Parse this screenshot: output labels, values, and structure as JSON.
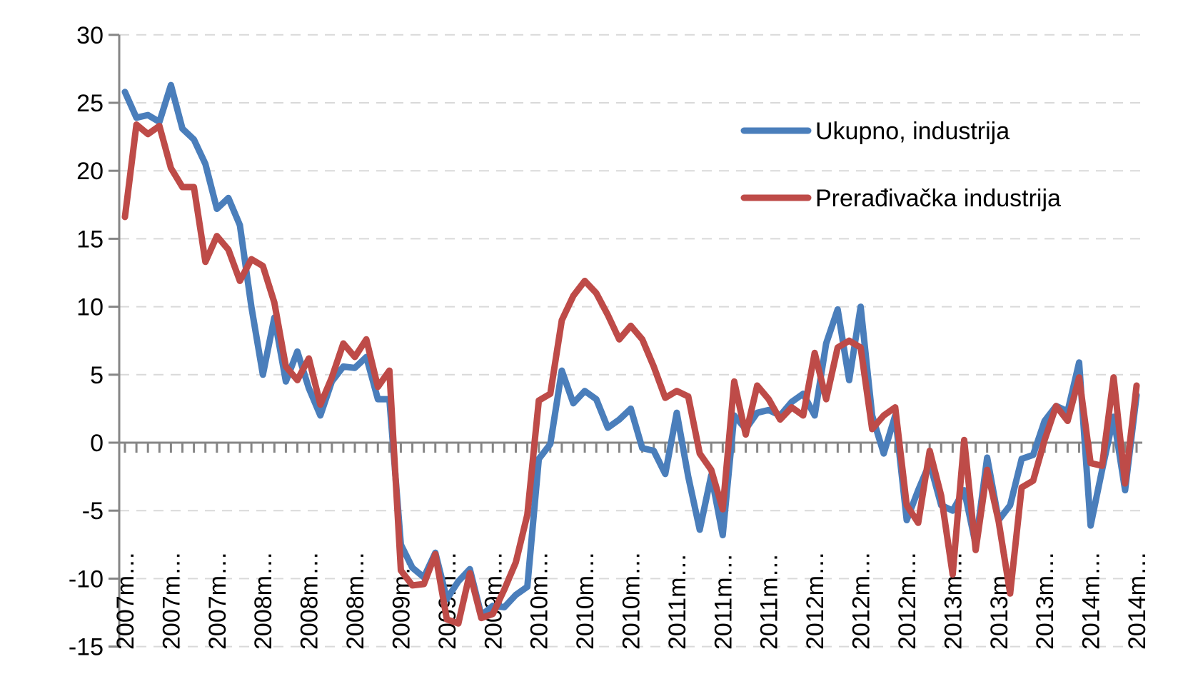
{
  "chart_data": {
    "type": "line",
    "title": "",
    "xlabel": "",
    "ylabel": "",
    "ylim": [
      -15,
      30
    ],
    "yticks": [
      30,
      25,
      20,
      15,
      10,
      5,
      0,
      -5,
      -10,
      -15
    ],
    "grid": true,
    "legend_position": "top-right",
    "x_tick_labels": [
      "2007m…",
      "2007m…",
      "2007m…",
      "2008m…",
      "2008m…",
      "2008m…",
      "2009m…",
      "2009m…",
      "2009m…",
      "2010m…",
      "2010m…",
      "2010m…",
      "2011m…",
      "2011m…",
      "2011m…",
      "2012m…",
      "2012m…",
      "2012m…",
      "2013m…",
      "2013m…",
      "2013m…",
      "2014m…",
      "2014m…"
    ],
    "x_label_every": 4,
    "series": [
      {
        "name": "Ukupno, industrija",
        "color": "#4a7ebb",
        "values": [
          25.8,
          23.9,
          24.1,
          23.6,
          26.3,
          23.1,
          22.3,
          20.5,
          17.2,
          18.0,
          16.0,
          10.0,
          5.0,
          9.2,
          4.5,
          6.7,
          4.0,
          2.0,
          4.5,
          5.6,
          5.5,
          6.3,
          3.2,
          3.2,
          -7.5,
          -9.2,
          -9.9,
          -8.1,
          -11.5,
          -10.2,
          -9.3,
          -12.7,
          -12.0,
          -12.1,
          -11.2,
          -10.6,
          -1.2,
          -0.1,
          5.3,
          2.9,
          3.8,
          3.2,
          1.1,
          1.7,
          2.5,
          -0.4,
          -0.6,
          -2.3,
          2.2,
          -2.5,
          -6.4,
          -2.4,
          -6.8,
          2.0,
          1.0,
          2.2,
          2.4,
          2.0,
          3.0,
          3.6,
          2.0,
          7.3,
          9.8,
          4.6,
          10.0,
          2.0,
          -0.8,
          2.0,
          -5.7,
          -3.5,
          -1.5,
          -4.6,
          -5.0,
          -3.5,
          -7.5,
          -1.1,
          -5.7,
          -4.6,
          -1.2,
          -0.9,
          1.6,
          2.7,
          2.3,
          5.9,
          -6.1,
          -2.0,
          1.9,
          -3.5,
          3.5
        ]
      },
      {
        "name": "Prerađivačka industrija",
        "color": "#be4b48",
        "values": [
          16.6,
          23.4,
          22.7,
          23.3,
          20.2,
          18.8,
          18.8,
          13.3,
          15.2,
          14.2,
          11.9,
          13.5,
          13.0,
          10.3,
          5.6,
          4.6,
          6.2,
          2.8,
          4.8,
          7.3,
          6.3,
          7.6,
          4.1,
          5.3,
          -9.4,
          -10.5,
          -10.4,
          -8.2,
          -13.0,
          -13.3,
          -9.6,
          -12.9,
          -12.6,
          -10.8,
          -8.8,
          -5.3,
          3.1,
          3.6,
          9.0,
          10.8,
          11.9,
          11.0,
          9.4,
          7.6,
          8.6,
          7.6,
          5.6,
          3.3,
          3.8,
          3.4,
          -0.8,
          -2.0,
          -4.9,
          4.5,
          0.6,
          4.2,
          3.2,
          1.7,
          2.6,
          2.0,
          6.6,
          3.2,
          7.0,
          7.5,
          7.0,
          1.0,
          2.0,
          2.6,
          -4.6,
          -5.9,
          -0.6,
          -3.9,
          -9.7,
          0.2,
          -7.9,
          -2.0,
          -5.8,
          -11.1,
          -3.3,
          -2.8,
          0.2,
          2.7,
          1.6,
          4.8,
          -1.5,
          -1.7,
          4.8,
          -3.0,
          4.2
        ]
      }
    ]
  }
}
